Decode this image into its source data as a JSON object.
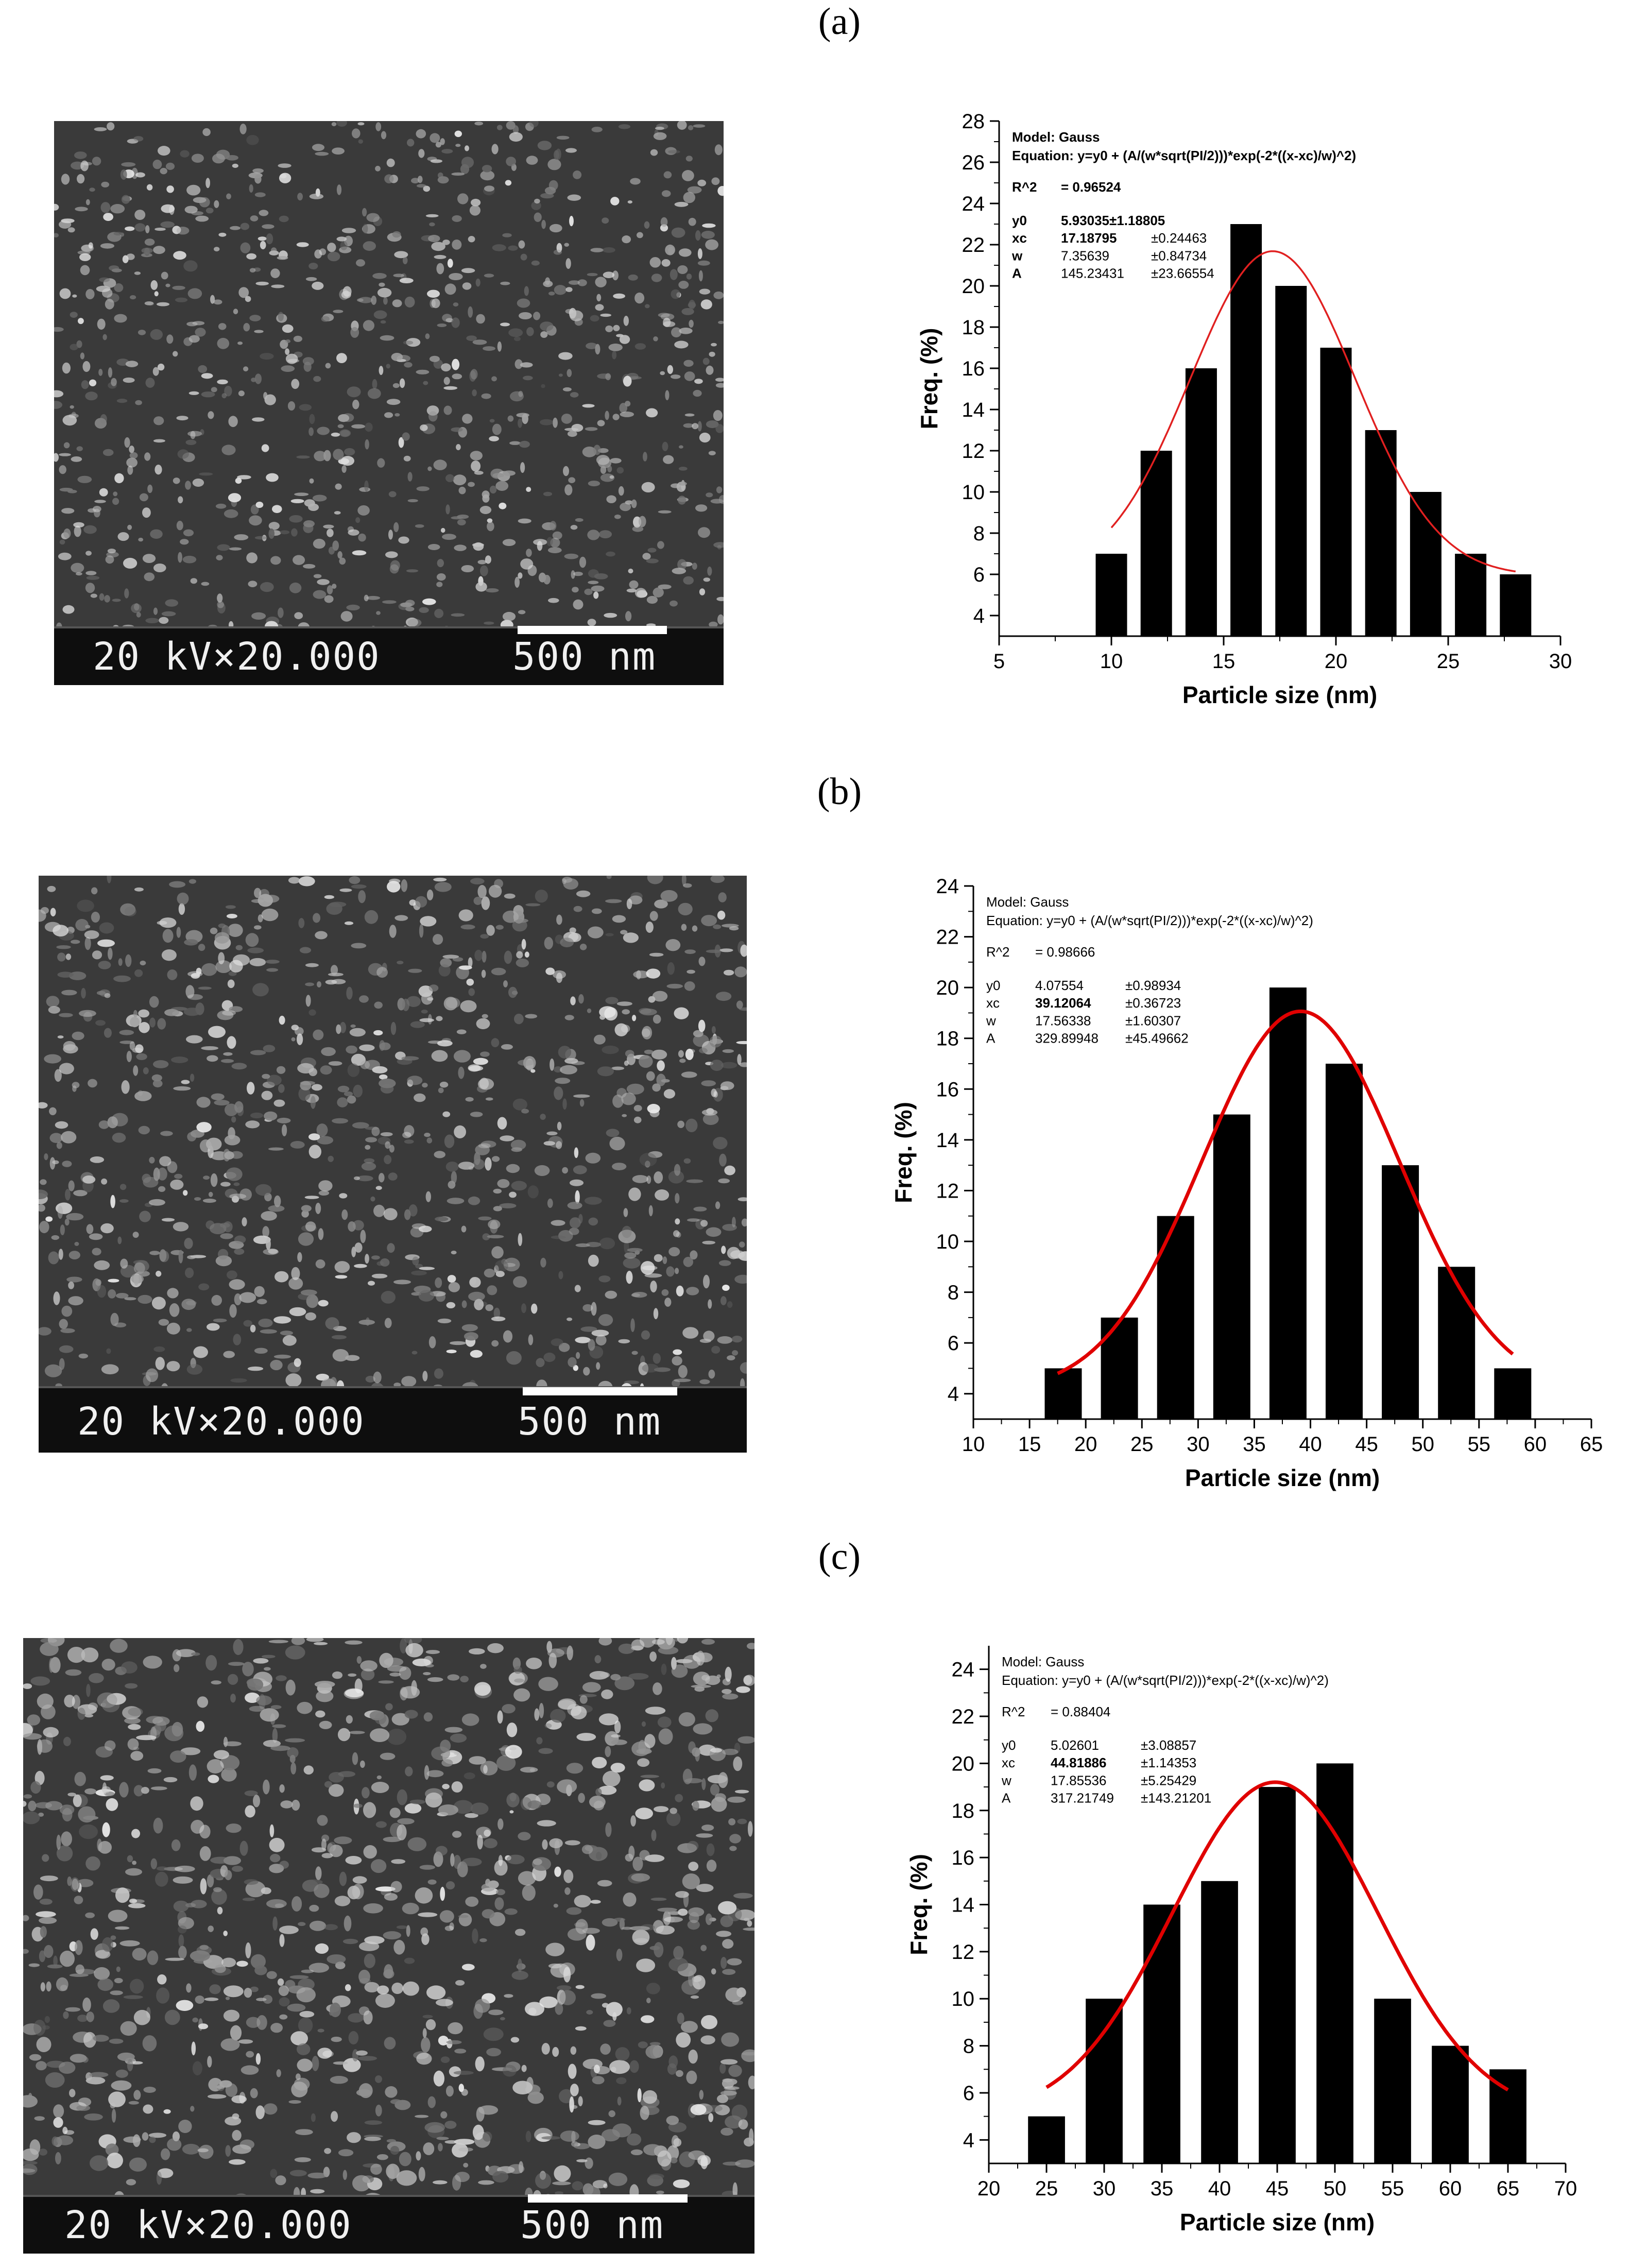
{
  "figure": {
    "panels": [
      {
        "label": "(a)",
        "sem": {
          "voltage_mag": "20 kV×20.000",
          "scale_label": "500 nm"
        },
        "fit_box": {
          "model": "Model: Gauss",
          "equation": "Equation: y=y0 + (A/(w*sqrt(PI/2)))*exp(-2*((x-xc)/w)^2)",
          "r2_label": "R^2",
          "r2_value": "= 0.96524",
          "params": [
            {
              "name": "y0",
              "value": "5.93035±1.18805",
              "err": ""
            },
            {
              "name": "xc",
              "value": "17.18795",
              "err": "±0.24463"
            },
            {
              "name": "w",
              "value": "7.35639",
              "err": "±0.84734"
            },
            {
              "name": "A",
              "value": "145.23431",
              "err": "±23.66554"
            }
          ]
        }
      },
      {
        "label": "(b)",
        "sem": {
          "voltage_mag": "20 kV×20.000",
          "scale_label": "500 nm"
        },
        "fit_box": {
          "model": "Model: Gauss",
          "equation": "Equation: y=y0 + (A/(w*sqrt(PI/2)))*exp(-2*((x-xc)/w)^2)",
          "r2_label": "R^2",
          "r2_value": "= 0.98666",
          "params": [
            {
              "name": "y0",
              "value": "4.07554",
              "err": "±0.98934"
            },
            {
              "name": "xc",
              "value": "39.12064",
              "err": "±0.36723"
            },
            {
              "name": "w",
              "value": "17.56338",
              "err": "±1.60307"
            },
            {
              "name": "A",
              "value": "329.89948",
              "err": "±45.49662"
            }
          ]
        }
      },
      {
        "label": "(c)",
        "sem": {
          "voltage_mag": "20 kV×20.000",
          "scale_label": "500 nm"
        },
        "fit_box": {
          "model": "Model: Gauss",
          "equation": "Equation: y=y0 + (A/(w*sqrt(PI/2)))*exp(-2*((x-xc)/w)^2)",
          "r2_label": "R^2",
          "r2_value": "= 0.88404",
          "params": [
            {
              "name": "y0",
              "value": "5.02601",
              "err": "±3.08857"
            },
            {
              "name": "xc",
              "value": "44.81886",
              "err": "±1.14353"
            },
            {
              "name": "w",
              "value": "17.85536",
              "err": "±5.25429"
            },
            {
              "name": "A",
              "value": "317.21749",
              "err": "±143.21201"
            }
          ]
        }
      }
    ]
  },
  "chart_data": [
    {
      "type": "bar",
      "xlabel": "Particle size (nm)",
      "ylabel": "Freq. (%)",
      "xlim": [
        5,
        30
      ],
      "ylim": [
        3,
        28
      ],
      "xticks": [
        5,
        10,
        15,
        20,
        25,
        30
      ],
      "yticks": [
        4,
        6,
        8,
        10,
        12,
        14,
        16,
        18,
        20,
        22,
        24,
        26,
        28
      ],
      "bar_width": 1.4,
      "x": [
        10,
        12,
        14,
        16,
        18,
        20,
        22,
        24,
        26,
        28
      ],
      "values": [
        7,
        12,
        16,
        23,
        20,
        17,
        13,
        10,
        7,
        6
      ],
      "fit": {
        "model": "gauss",
        "y0": 5.93035,
        "xc": 17.18795,
        "w": 7.35639,
        "A": 145.23431,
        "x_range": [
          10,
          28
        ]
      },
      "bar_color": "#000000",
      "fit_color": "#e02020",
      "fit_line": "thin"
    },
    {
      "type": "bar",
      "xlabel": "Particle size (nm)",
      "ylabel": "Freq. (%)",
      "xlim": [
        10,
        65
      ],
      "ylim": [
        3,
        24
      ],
      "xticks": [
        10,
        15,
        20,
        25,
        30,
        35,
        40,
        45,
        50,
        55,
        60,
        65
      ],
      "yticks": [
        4,
        6,
        8,
        10,
        12,
        14,
        16,
        18,
        20,
        22,
        24
      ],
      "bar_width": 3.3,
      "x": [
        18,
        23,
        28,
        33,
        38,
        43,
        48,
        53,
        58
      ],
      "values": [
        5,
        7,
        11,
        15,
        20,
        17,
        13,
        9,
        5
      ],
      "fit": {
        "model": "gauss",
        "y0": 4.07554,
        "xc": 39.12064,
        "w": 17.56338,
        "A": 329.89948,
        "x_range": [
          17.5,
          58
        ]
      },
      "bar_color": "#000000",
      "fit_color": "#e00000",
      "fit_line": "thick"
    },
    {
      "type": "bar",
      "xlabel": "Particle size (nm)",
      "ylabel": "Freq. (%)",
      "xlim": [
        20,
        70
      ],
      "ylim": [
        3,
        25
      ],
      "xticks": [
        20,
        25,
        30,
        35,
        40,
        45,
        50,
        55,
        60,
        65,
        70
      ],
      "yticks": [
        4,
        6,
        8,
        10,
        12,
        14,
        16,
        18,
        20,
        22,
        24
      ],
      "bar_width": 3.2,
      "x": [
        25,
        30,
        35,
        40,
        45,
        50,
        55,
        60,
        65
      ],
      "values": [
        5,
        10,
        14,
        15,
        19,
        20,
        10,
        8,
        7
      ],
      "fit": {
        "model": "gauss",
        "y0": 5.02601,
        "xc": 44.81886,
        "w": 17.85536,
        "A": 317.21749,
        "x_range": [
          25,
          65
        ]
      },
      "bar_color": "#000000",
      "fit_color": "#e00000",
      "fit_line": "thick"
    }
  ]
}
